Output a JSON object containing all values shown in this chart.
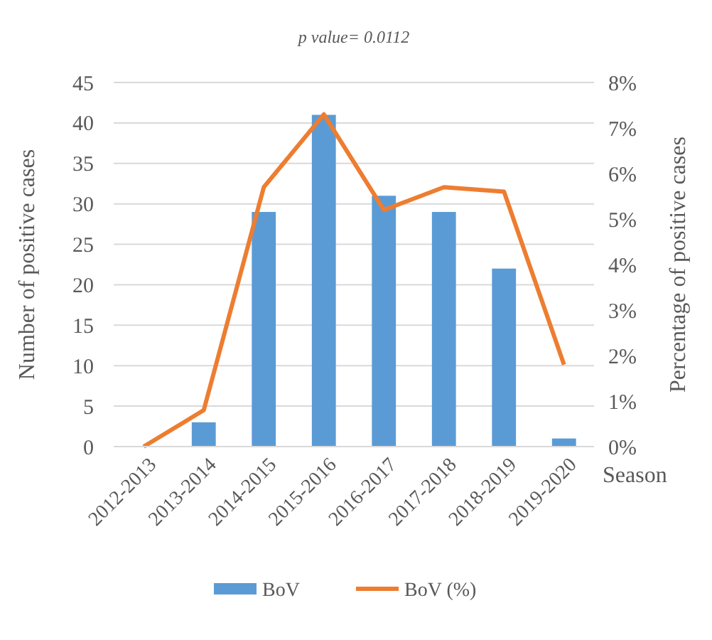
{
  "chart_data": {
    "type": "bar",
    "title": "p value= 0.0112",
    "xlabel": "Season",
    "ylabel": "Number of positive cases",
    "y2label": "Percentage of positive cases",
    "categories": [
      "2012-2013",
      "2013-2014",
      "2014-2015",
      "2015-2016",
      "2016-2017",
      "2017-2018",
      "2018-2019",
      "2019-2020"
    ],
    "series": [
      {
        "name": "BoV",
        "color": "#5b9bd5",
        "values": [
          0,
          3,
          29,
          41,
          31,
          29,
          22,
          1
        ]
      },
      {
        "name": "BoV (%)",
        "type": "line",
        "axis": "y2",
        "color": "#ed7d31",
        "values": [
          0,
          0.8,
          5.7,
          7.3,
          5.2,
          5.7,
          5.6,
          1.8
        ]
      }
    ],
    "ylim": [
      0,
      45
    ],
    "yticks": [
      0,
      5,
      10,
      15,
      20,
      25,
      30,
      35,
      40,
      45
    ],
    "y2lim": [
      0,
      8
    ],
    "y2ticks": [
      {
        "value": 0,
        "label": "0%"
      },
      {
        "value": 1,
        "label": "1%"
      },
      {
        "value": 2,
        "label": "2%"
      },
      {
        "value": 3,
        "label": "3%"
      },
      {
        "value": 4,
        "label": "4%"
      },
      {
        "value": 5,
        "label": "5%"
      },
      {
        "value": 6,
        "label": "6%"
      },
      {
        "value": 7,
        "label": "7%"
      },
      {
        "value": 8,
        "label": "8%"
      }
    ],
    "grid": "y",
    "legend": "bottom",
    "marker": "none"
  }
}
